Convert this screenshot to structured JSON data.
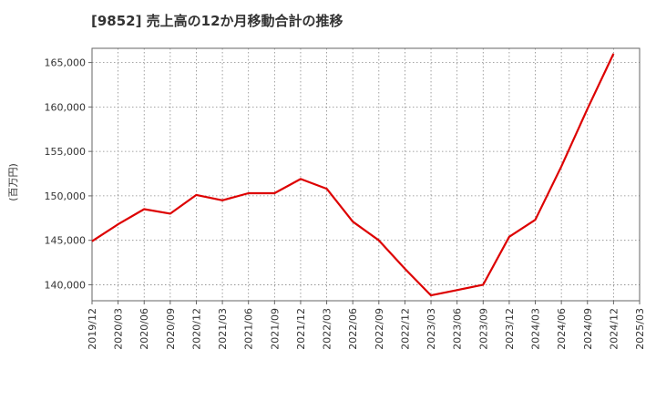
{
  "chart_data": {
    "type": "line",
    "title": "[9852]  売上高の12か月移動合計の推移",
    "ylabel": "(百万円)",
    "xlabel": "",
    "ylim": [
      138200,
      166600
    ],
    "yticks": [
      140000,
      145000,
      150000,
      155000,
      160000,
      165000
    ],
    "ytick_labels": [
      "140,000",
      "145,000",
      "150,000",
      "155,000",
      "160,000",
      "165,000"
    ],
    "xtick_labels": [
      "2019/12",
      "2020/03",
      "2020/06",
      "2020/09",
      "2020/12",
      "2021/03",
      "2021/06",
      "2021/09",
      "2021/12",
      "2022/03",
      "2022/06",
      "2022/09",
      "2022/12",
      "2023/03",
      "2023/06",
      "2023/09",
      "2023/12",
      "2024/03",
      "2024/06",
      "2024/09",
      "2024/12",
      "2025/03"
    ],
    "grid": true,
    "series": [
      {
        "name": "売上高の12か月移動合計",
        "color": "#dd0000",
        "x": [
          "2019/12",
          "2020/03",
          "2020/06",
          "2020/09",
          "2020/12",
          "2021/03",
          "2021/06",
          "2021/09",
          "2021/12",
          "2022/03",
          "2022/06",
          "2022/09",
          "2022/12",
          "2023/03",
          "2023/06",
          "2023/09",
          "2023/12",
          "2024/03",
          "2024/06",
          "2024/09",
          "2024/12"
        ],
        "values": [
          144900,
          146800,
          148500,
          148000,
          150100,
          149500,
          150300,
          150300,
          151900,
          150800,
          147100,
          145000,
          141800,
          138800,
          139400,
          140000,
          145400,
          147300,
          153300,
          159800,
          166000
        ]
      }
    ]
  }
}
